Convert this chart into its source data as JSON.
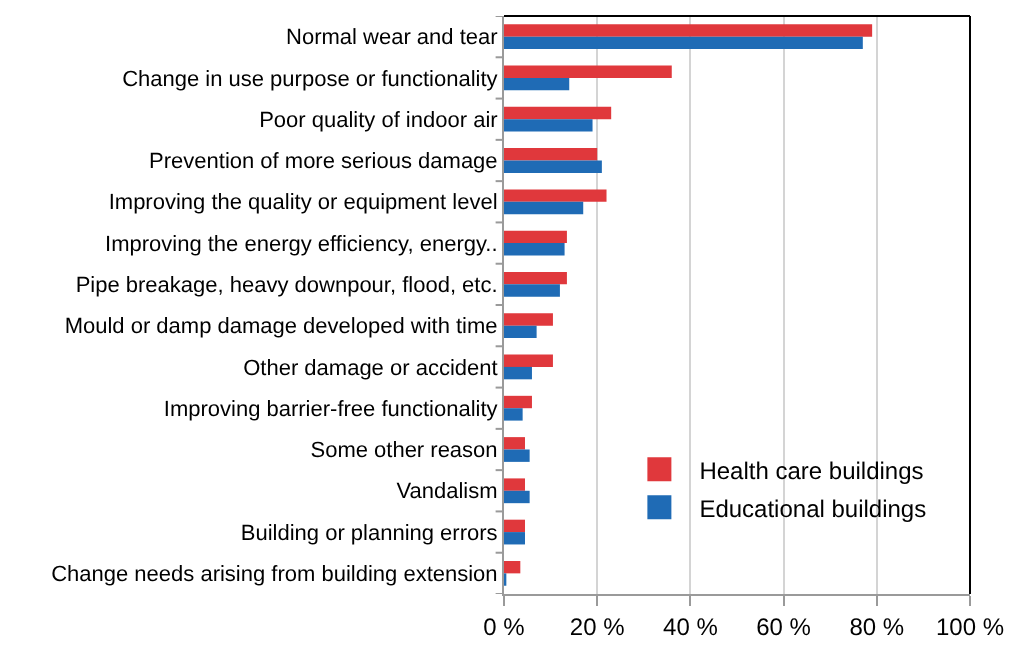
{
  "chart_data": {
    "type": "bar",
    "orientation": "horizontal",
    "categories": [
      "Normal wear and tear",
      "Change in use purpose or functionality",
      "Poor quality of indoor air",
      "Prevention of more serious damage",
      "Improving the quality or equipment level",
      "Improving the energy efficiency, energy..",
      "Pipe breakage, heavy downpour, flood, etc.",
      "Mould or damp damage developed with time",
      "Other damage or accident",
      "Improving barrier-free functionality",
      "Some other reason",
      "Vandalism",
      "Building or planning errors",
      "Change needs arising from building extension"
    ],
    "series": [
      {
        "name": "Health care buildings",
        "color": "#e0383c",
        "values": [
          79,
          36,
          23,
          20,
          22,
          13.5,
          13.5,
          10.5,
          10.5,
          6,
          4.5,
          4.5,
          4.5,
          3.5
        ]
      },
      {
        "name": "Educational buildings",
        "color": "#1f6bb5",
        "values": [
          77,
          14,
          19,
          21,
          17,
          13,
          12,
          7,
          6,
          4,
          5.5,
          5.5,
          4.5,
          0.5
        ]
      }
    ],
    "xlim": [
      0,
      100
    ],
    "xticks": [
      {
        "value": 0,
        "label": "0 %"
      },
      {
        "value": 20,
        "label": "20 %"
      },
      {
        "value": 40,
        "label": "40 %"
      },
      {
        "value": 60,
        "label": "60 %"
      },
      {
        "value": 80,
        "label": "80 %"
      },
      {
        "value": 100,
        "label": "100 %"
      }
    ],
    "grid": "x",
    "legend": "bottom right"
  }
}
